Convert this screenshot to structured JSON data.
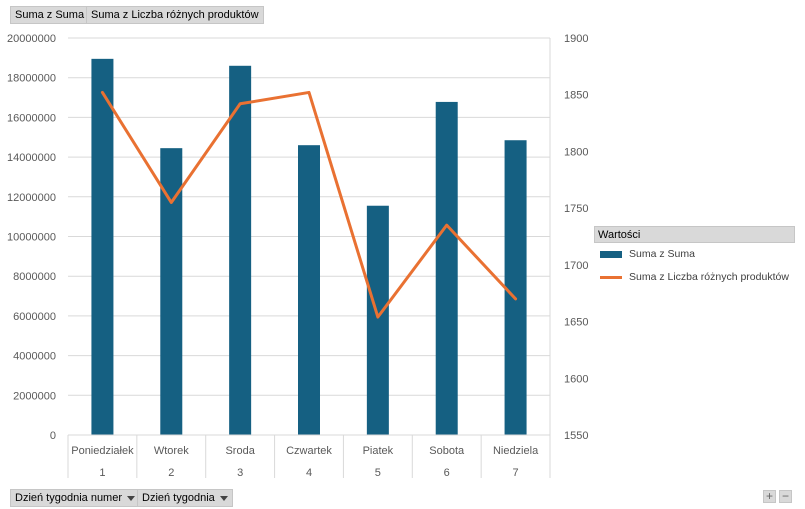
{
  "field_buttons": {
    "value1": "Suma z Suma",
    "value2": "Suma z Liczba różnych produktów",
    "axis1": "Dzień tygodnia numer",
    "axis2": "Dzień tygodnia"
  },
  "legend": {
    "title": "Wartości",
    "items": [
      "Suma z Suma",
      "Suma z Liczba różnych produktów"
    ]
  },
  "zoom": {
    "plus": "+",
    "minus": "−"
  },
  "chart_data": {
    "type": "bar",
    "title": "",
    "categories": [
      "Poniedziałek",
      "Wtorek",
      "Sroda",
      "Czwartek",
      "Piatek",
      "Sobota",
      "Niedziela"
    ],
    "category_numbers": [
      "1",
      "2",
      "3",
      "4",
      "5",
      "6",
      "7"
    ],
    "series": [
      {
        "name": "Suma z Suma",
        "type": "bar",
        "axis": "left",
        "values": [
          18950000,
          14450000,
          18600000,
          14600000,
          11550000,
          16780000,
          14850000
        ]
      },
      {
        "name": "Suma z Liczba różnych produktów",
        "type": "line",
        "axis": "right",
        "values": [
          1852,
          1755,
          1842,
          1852,
          1654,
          1735,
          1670
        ]
      }
    ],
    "y_left": {
      "min": 0,
      "max": 20000000,
      "step": 2000000
    },
    "y_right": {
      "min": 1550,
      "max": 1900,
      "step": 50
    },
    "grid": true,
    "legend_position": "right",
    "colors": {
      "bar": "#156082",
      "line": "#E97132"
    }
  }
}
